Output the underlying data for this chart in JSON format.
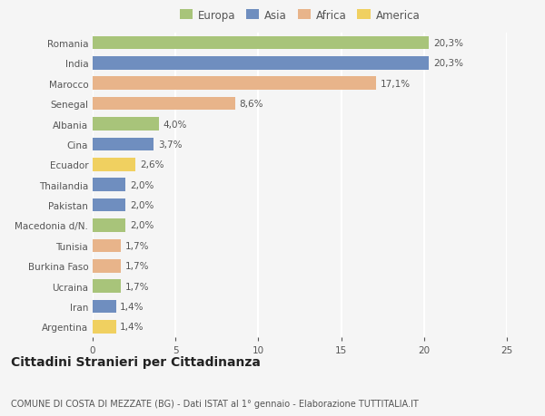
{
  "countries": [
    "Romania",
    "India",
    "Marocco",
    "Senegal",
    "Albania",
    "Cina",
    "Ecuador",
    "Thailandia",
    "Pakistan",
    "Macedonia d/N.",
    "Tunisia",
    "Burkina Faso",
    "Ucraina",
    "Iran",
    "Argentina"
  ],
  "values": [
    20.3,
    20.3,
    17.1,
    8.6,
    4.0,
    3.7,
    2.6,
    2.0,
    2.0,
    2.0,
    1.7,
    1.7,
    1.7,
    1.4,
    1.4
  ],
  "labels": [
    "20,3%",
    "20,3%",
    "17,1%",
    "8,6%",
    "4,0%",
    "3,7%",
    "2,6%",
    "2,0%",
    "2,0%",
    "2,0%",
    "1,7%",
    "1,7%",
    "1,7%",
    "1,4%",
    "1,4%"
  ],
  "continents": [
    "Europa",
    "Asia",
    "Africa",
    "Africa",
    "Europa",
    "Asia",
    "America",
    "Asia",
    "Asia",
    "Europa",
    "Africa",
    "Africa",
    "Europa",
    "Asia",
    "America"
  ],
  "continent_colors": {
    "Europa": "#a8c47a",
    "Asia": "#6f8ebf",
    "Africa": "#e8b48a",
    "America": "#f0d060"
  },
  "legend_order": [
    "Europa",
    "Asia",
    "Africa",
    "America"
  ],
  "title": "Cittadini Stranieri per Cittadinanza",
  "subtitle": "COMUNE DI COSTA DI MEZZATE (BG) - Dati ISTAT al 1° gennaio - Elaborazione TUTTITALIA.IT",
  "xlim": [
    0,
    25
  ],
  "xticks": [
    0,
    5,
    10,
    15,
    20,
    25
  ],
  "background_color": "#f5f5f5",
  "bar_height": 0.65,
  "grid_color": "#ffffff",
  "label_fontsize": 7.5,
  "tick_label_fontsize": 7.5,
  "title_fontsize": 10,
  "subtitle_fontsize": 7
}
